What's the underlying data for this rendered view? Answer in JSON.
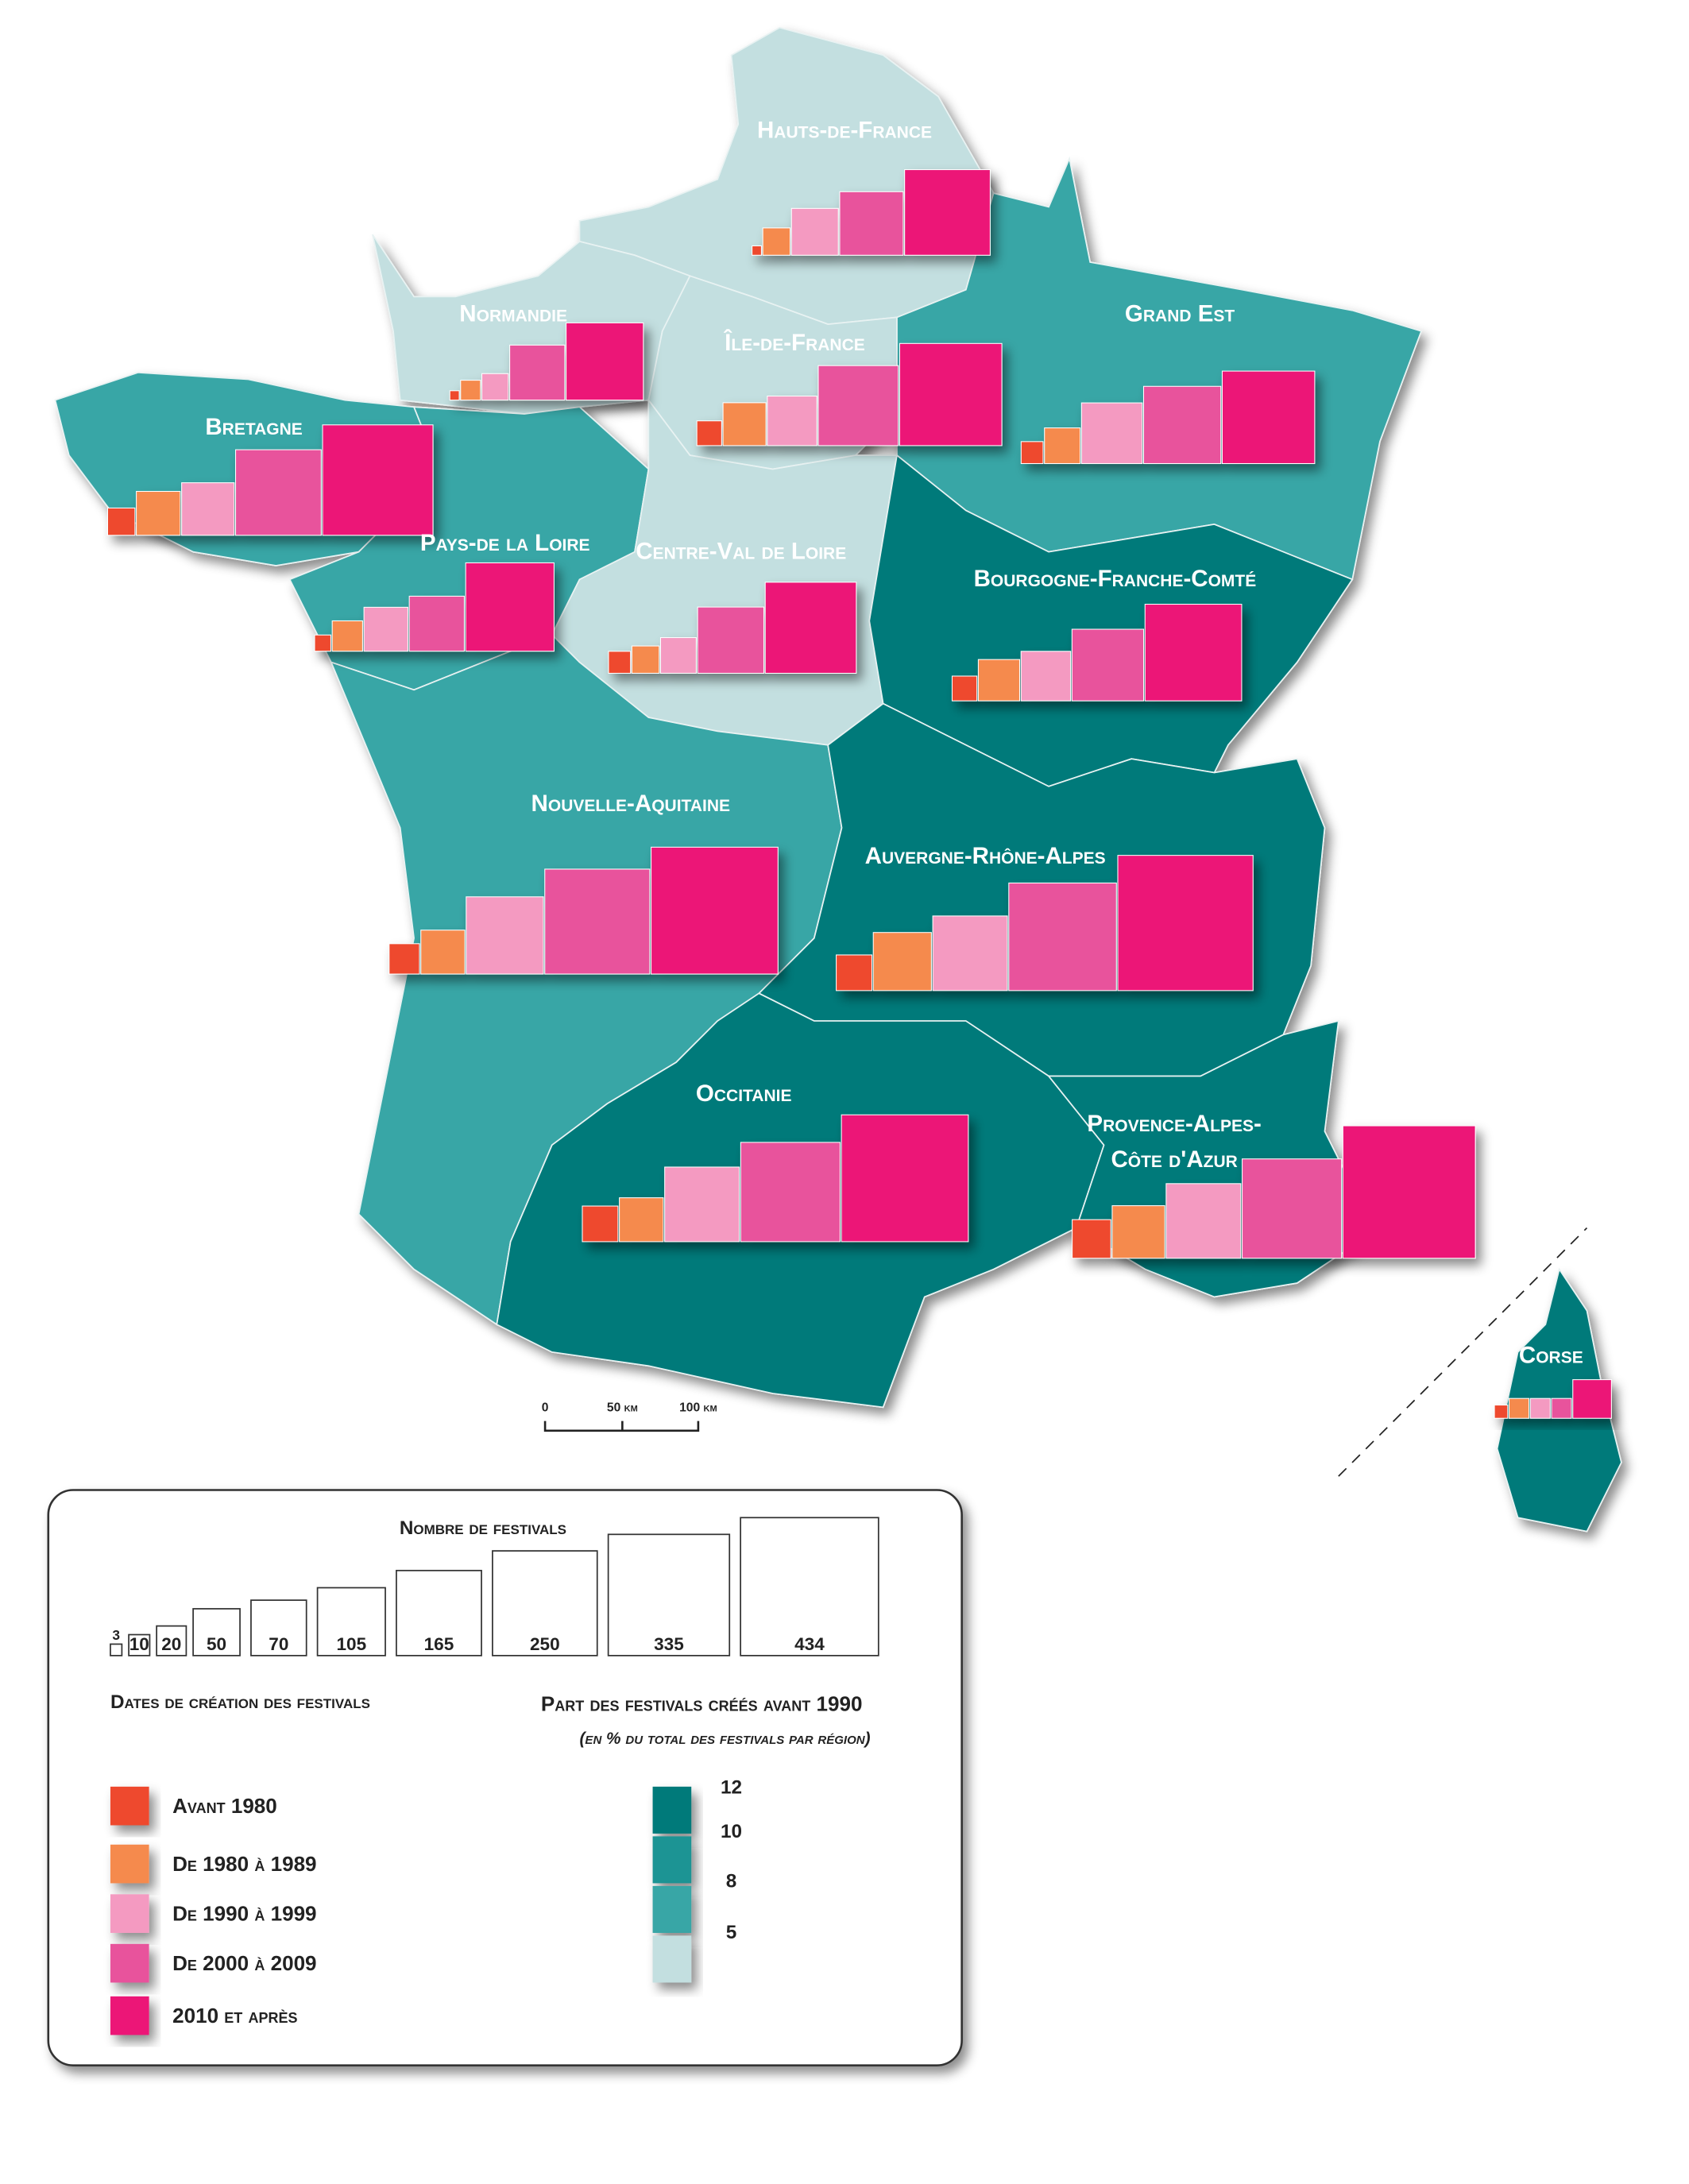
{
  "regions": [
    {
      "name": "Hauts-de-France",
      "color": "#c3dfe0",
      "values": [
        2,
        17,
        50,
        92,
        167
      ]
    },
    {
      "name": "Normandie",
      "color": "#c3dfe0",
      "values": [
        2,
        9,
        16,
        69,
        136
      ]
    },
    {
      "name": "Île-de-France",
      "color": "#c3dfe0",
      "values": [
        14,
        42,
        56,
        146,
        238
      ]
    },
    {
      "name": "Grand Est",
      "color": "#37a6a6",
      "values": [
        11,
        29,
        84,
        136,
        195
      ]
    },
    {
      "name": "Bretagne",
      "color": "#37a6a6",
      "values": [
        17,
        44,
        63,
        167,
        278
      ]
    },
    {
      "name": "Pays-de la Loire",
      "color": "#37a6a6",
      "values": [
        6,
        21,
        44,
        69,
        178
      ]
    },
    {
      "name": "Centre-Val de Loire",
      "color": "#c3dfe0",
      "values": [
        11,
        17,
        29,
        100,
        189
      ]
    },
    {
      "name": "Bourgogne-Franche-Comté",
      "color": "#007a7a",
      "values": [
        14,
        39,
        56,
        117,
        213
      ]
    },
    {
      "name": "Nouvelle-Aquitaine",
      "color": "#37a6a6",
      "values": [
        21,
        44,
        136,
        251,
        367
      ]
    },
    {
      "name": "Auvergne-Rhône-Alpes",
      "color": "#007a7a",
      "values": [
        29,
        77,
        127,
        264,
        417
      ]
    },
    {
      "name": "Occitanie",
      "color": "#007a7a",
      "values": [
        29,
        44,
        127,
        225,
        367
      ]
    },
    {
      "name": [
        "Provence-Alpes-",
        "Côte d'Azur"
      ],
      "color": "#007a7a",
      "values": [
        34,
        63,
        127,
        225,
        400
      ]
    },
    {
      "name": "Corse",
      "color": "#007a7a",
      "values": [
        4,
        9,
        9,
        9,
        34
      ]
    }
  ],
  "size_legend": {
    "title": "Nombre de festivals",
    "values": [
      3,
      10,
      20,
      50,
      70,
      105,
      165,
      250,
      335,
      434
    ]
  },
  "date_legend": {
    "title": "Dates de création des festivals",
    "categories": [
      "Avant 1980",
      "De 1980 à 1989",
      "De 1990 à 1999",
      "De 2000 à 2009",
      "2010 et après"
    ],
    "colors": [
      "#ee4a2f",
      "#f58a4e",
      "#f49ac1",
      "#e8529c",
      "#ec1477"
    ]
  },
  "share_legend": {
    "title": "Part des festivals créés avant 1990",
    "subtitle": "(en % du total des festivals par région)",
    "breaks": [
      12,
      10,
      8,
      5
    ],
    "colors": [
      "#007a7a",
      "#1f9494",
      "#37a6a6",
      "#c3dfe0"
    ]
  },
  "scale_bar": {
    "labels": [
      "0",
      "50 km",
      "100 km"
    ]
  }
}
